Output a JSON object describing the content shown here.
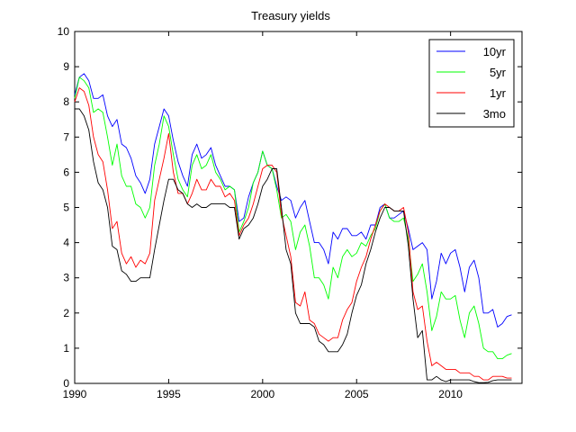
{
  "chart_data": {
    "type": "line",
    "title": "Treasury yields",
    "xlabel": "",
    "ylabel": "",
    "xlim": [
      1990,
      2013.8
    ],
    "ylim": [
      0,
      10
    ],
    "xticks": [
      1990,
      1995,
      2000,
      2005,
      2010
    ],
    "yticks": [
      0,
      1,
      2,
      3,
      4,
      5,
      6,
      7,
      8,
      9,
      10
    ],
    "grid": false,
    "legend_position": "top-right",
    "series": [
      {
        "name": "10yr",
        "color": "#0000ff",
        "x": [
          1990.0,
          1990.25,
          1990.5,
          1990.75,
          1991.0,
          1991.25,
          1991.5,
          1991.75,
          1992.0,
          1992.25,
          1992.5,
          1992.75,
          1993.0,
          1993.25,
          1993.5,
          1993.75,
          1994.0,
          1994.25,
          1994.5,
          1994.75,
          1995.0,
          1995.25,
          1995.5,
          1995.75,
          1996.0,
          1996.25,
          1996.5,
          1996.75,
          1997.0,
          1997.25,
          1997.5,
          1997.75,
          1998.0,
          1998.25,
          1998.5,
          1998.75,
          1999.0,
          1999.25,
          1999.5,
          1999.75,
          2000.0,
          2000.25,
          2000.5,
          2000.75,
          2001.0,
          2001.25,
          2001.5,
          2001.75,
          2002.0,
          2002.25,
          2002.5,
          2002.75,
          2003.0,
          2003.25,
          2003.5,
          2003.75,
          2004.0,
          2004.25,
          2004.5,
          2004.75,
          2005.0,
          2005.25,
          2005.5,
          2005.75,
          2006.0,
          2006.25,
          2006.5,
          2006.75,
          2007.0,
          2007.25,
          2007.5,
          2007.75,
          2008.0,
          2008.25,
          2008.5,
          2008.75,
          2009.0,
          2009.25,
          2009.5,
          2009.75,
          2010.0,
          2010.25,
          2010.5,
          2010.75,
          2011.0,
          2011.25,
          2011.5,
          2011.75,
          2012.0,
          2012.25,
          2012.5,
          2012.75,
          2013.0,
          2013.25
        ],
        "y": [
          8.2,
          8.7,
          8.8,
          8.6,
          8.1,
          8.1,
          8.2,
          7.6,
          7.3,
          7.5,
          6.8,
          6.7,
          6.4,
          5.9,
          5.7,
          5.4,
          5.8,
          6.8,
          7.3,
          7.8,
          7.6,
          6.9,
          6.3,
          5.9,
          5.6,
          6.5,
          6.8,
          6.4,
          6.5,
          6.7,
          6.2,
          5.9,
          5.6,
          5.6,
          5.5,
          4.6,
          4.7,
          5.3,
          5.7,
          6.0,
          6.6,
          6.2,
          6.1,
          5.6,
          5.2,
          5.3,
          5.2,
          4.7,
          5.0,
          5.2,
          4.6,
          4.0,
          4.0,
          3.8,
          3.4,
          4.3,
          4.1,
          4.4,
          4.4,
          4.2,
          4.2,
          4.3,
          4.1,
          4.5,
          4.5,
          5.0,
          5.1,
          4.7,
          4.7,
          4.8,
          4.9,
          4.4,
          3.8,
          3.9,
          4.0,
          3.8,
          2.4,
          2.9,
          3.7,
          3.4,
          3.7,
          3.8,
          3.3,
          2.6,
          3.3,
          3.5,
          3.0,
          2.0,
          2.0,
          2.1,
          1.6,
          1.7,
          1.9,
          1.95
        ]
      },
      {
        "name": "5yr",
        "color": "#00ff00",
        "x": [
          1990.0,
          1990.25,
          1990.5,
          1990.75,
          1991.0,
          1991.25,
          1991.5,
          1991.75,
          1992.0,
          1992.25,
          1992.5,
          1992.75,
          1993.0,
          1993.25,
          1993.5,
          1993.75,
          1994.0,
          1994.25,
          1994.5,
          1994.75,
          1995.0,
          1995.25,
          1995.5,
          1995.75,
          1996.0,
          1996.25,
          1996.5,
          1996.75,
          1997.0,
          1997.25,
          1997.5,
          1997.75,
          1998.0,
          1998.25,
          1998.5,
          1998.75,
          1999.0,
          1999.25,
          1999.5,
          1999.75,
          2000.0,
          2000.25,
          2000.5,
          2000.75,
          2001.0,
          2001.25,
          2001.5,
          2001.75,
          2002.0,
          2002.25,
          2002.5,
          2002.75,
          2003.0,
          2003.25,
          2003.5,
          2003.75,
          2004.0,
          2004.25,
          2004.5,
          2004.75,
          2005.0,
          2005.25,
          2005.5,
          2005.75,
          2006.0,
          2006.25,
          2006.5,
          2006.75,
          2007.0,
          2007.25,
          2007.5,
          2007.75,
          2008.0,
          2008.25,
          2008.5,
          2008.75,
          2009.0,
          2009.25,
          2009.5,
          2009.75,
          2010.0,
          2010.25,
          2010.5,
          2010.75,
          2011.0,
          2011.25,
          2011.5,
          2011.75,
          2012.0,
          2012.25,
          2012.5,
          2012.75,
          2013.0,
          2013.25
        ],
        "y": [
          8.1,
          8.7,
          8.6,
          8.4,
          7.7,
          7.8,
          7.7,
          7.0,
          6.2,
          6.8,
          5.9,
          5.6,
          5.6,
          5.1,
          5.0,
          4.7,
          5.0,
          6.2,
          6.8,
          7.6,
          7.3,
          6.5,
          5.8,
          5.5,
          5.3,
          6.2,
          6.5,
          6.1,
          6.2,
          6.5,
          6.0,
          5.8,
          5.5,
          5.6,
          5.5,
          4.3,
          4.6,
          5.0,
          5.7,
          6.0,
          6.6,
          6.2,
          6.1,
          5.5,
          4.7,
          4.8,
          4.6,
          3.8,
          4.3,
          4.5,
          3.9,
          3.0,
          3.0,
          2.8,
          2.4,
          3.3,
          3.0,
          3.6,
          3.8,
          3.6,
          3.7,
          4.0,
          3.9,
          4.2,
          4.4,
          4.9,
          5.1,
          4.7,
          4.6,
          4.6,
          4.7,
          4.1,
          2.9,
          3.1,
          3.4,
          2.6,
          1.5,
          1.9,
          2.6,
          2.4,
          2.4,
          2.5,
          1.8,
          1.3,
          2.0,
          2.2,
          1.7,
          1.0,
          0.9,
          0.9,
          0.7,
          0.7,
          0.8,
          0.85
        ]
      },
      {
        "name": "1yr",
        "color": "#ff0000",
        "x": [
          1990.0,
          1990.25,
          1990.5,
          1990.75,
          1991.0,
          1991.25,
          1991.5,
          1991.75,
          1992.0,
          1992.25,
          1992.5,
          1992.75,
          1993.0,
          1993.25,
          1993.5,
          1993.75,
          1994.0,
          1994.25,
          1994.5,
          1994.75,
          1995.0,
          1995.25,
          1995.5,
          1995.75,
          1996.0,
          1996.25,
          1996.5,
          1996.75,
          1997.0,
          1997.25,
          1997.5,
          1997.75,
          1998.0,
          1998.25,
          1998.5,
          1998.75,
          1999.0,
          1999.25,
          1999.5,
          1999.75,
          2000.0,
          2000.25,
          2000.5,
          2000.75,
          2001.0,
          2001.25,
          2001.5,
          2001.75,
          2002.0,
          2002.25,
          2002.5,
          2002.75,
          2003.0,
          2003.25,
          2003.5,
          2003.75,
          2004.0,
          2004.25,
          2004.5,
          2004.75,
          2005.0,
          2005.25,
          2005.5,
          2005.75,
          2006.0,
          2006.25,
          2006.5,
          2006.75,
          2007.0,
          2007.25,
          2007.5,
          2007.75,
          2008.0,
          2008.25,
          2008.5,
          2008.75,
          2009.0,
          2009.25,
          2009.5,
          2009.75,
          2010.0,
          2010.25,
          2010.5,
          2010.75,
          2011.0,
          2011.25,
          2011.5,
          2011.75,
          2012.0,
          2012.25,
          2012.5,
          2012.75,
          2013.0,
          2013.25
        ],
        "y": [
          8.0,
          8.4,
          8.3,
          7.9,
          7.0,
          6.5,
          6.3,
          5.5,
          4.4,
          4.6,
          3.7,
          3.4,
          3.6,
          3.3,
          3.5,
          3.4,
          3.7,
          5.2,
          5.8,
          6.4,
          7.1,
          6.0,
          5.4,
          5.4,
          5.1,
          5.4,
          5.8,
          5.5,
          5.5,
          5.8,
          5.6,
          5.6,
          5.3,
          5.4,
          5.2,
          4.2,
          4.5,
          4.7,
          5.1,
          5.6,
          6.1,
          6.2,
          6.2,
          6.0,
          4.8,
          4.2,
          3.6,
          2.3,
          2.2,
          2.6,
          1.8,
          1.7,
          1.4,
          1.3,
          1.2,
          1.3,
          1.3,
          1.8,
          2.1,
          2.3,
          2.9,
          3.3,
          3.6,
          4.1,
          4.5,
          4.9,
          5.1,
          5.0,
          4.9,
          4.9,
          5.0,
          4.3,
          2.6,
          2.1,
          2.2,
          1.2,
          0.5,
          0.6,
          0.5,
          0.4,
          0.4,
          0.4,
          0.3,
          0.3,
          0.3,
          0.2,
          0.2,
          0.1,
          0.1,
          0.2,
          0.2,
          0.2,
          0.15,
          0.15
        ]
      },
      {
        "name": "3mo",
        "color": "#000000",
        "x": [
          1990.0,
          1990.25,
          1990.5,
          1990.75,
          1991.0,
          1991.25,
          1991.5,
          1991.75,
          1992.0,
          1992.25,
          1992.5,
          1992.75,
          1993.0,
          1993.25,
          1993.5,
          1993.75,
          1994.0,
          1994.25,
          1994.5,
          1994.75,
          1995.0,
          1995.25,
          1995.5,
          1995.75,
          1996.0,
          1996.25,
          1996.5,
          1996.75,
          1997.0,
          1997.25,
          1997.5,
          1997.75,
          1998.0,
          1998.25,
          1998.5,
          1998.75,
          1999.0,
          1999.25,
          1999.5,
          1999.75,
          2000.0,
          2000.25,
          2000.5,
          2000.75,
          2001.0,
          2001.25,
          2001.5,
          2001.75,
          2002.0,
          2002.25,
          2002.5,
          2002.75,
          2003.0,
          2003.25,
          2003.5,
          2003.75,
          2004.0,
          2004.25,
          2004.5,
          2004.75,
          2005.0,
          2005.25,
          2005.5,
          2005.75,
          2006.0,
          2006.25,
          2006.5,
          2006.75,
          2007.0,
          2007.25,
          2007.5,
          2007.75,
          2008.0,
          2008.25,
          2008.5,
          2008.75,
          2009.0,
          2009.25,
          2009.5,
          2009.75,
          2010.0,
          2010.25,
          2010.5,
          2010.75,
          2011.0,
          2011.25,
          2011.5,
          2011.75,
          2012.0,
          2012.25,
          2012.5,
          2012.75,
          2013.0,
          2013.25
        ],
        "y": [
          7.8,
          7.8,
          7.6,
          7.2,
          6.3,
          5.7,
          5.5,
          5.0,
          3.9,
          3.8,
          3.2,
          3.1,
          2.9,
          2.9,
          3.0,
          3.0,
          3.0,
          3.8,
          4.5,
          5.2,
          5.8,
          5.8,
          5.5,
          5.4,
          5.1,
          5.0,
          5.1,
          5.0,
          5.0,
          5.1,
          5.1,
          5.1,
          5.1,
          5.0,
          5.0,
          4.1,
          4.4,
          4.5,
          4.7,
          5.1,
          5.6,
          5.8,
          6.1,
          6.1,
          5.0,
          3.8,
          3.4,
          2.0,
          1.7,
          1.7,
          1.7,
          1.6,
          1.2,
          1.1,
          0.9,
          0.9,
          0.9,
          1.1,
          1.4,
          2.0,
          2.5,
          2.8,
          3.4,
          3.8,
          4.3,
          4.7,
          5.0,
          5.0,
          4.9,
          4.9,
          4.9,
          3.9,
          2.4,
          1.3,
          1.5,
          0.1,
          0.1,
          0.2,
          0.1,
          0.05,
          0.1,
          0.1,
          0.1,
          0.1,
          0.1,
          0.05,
          0.02,
          0.02,
          0.03,
          0.08,
          0.1,
          0.1,
          0.1,
          0.1
        ]
      }
    ]
  }
}
